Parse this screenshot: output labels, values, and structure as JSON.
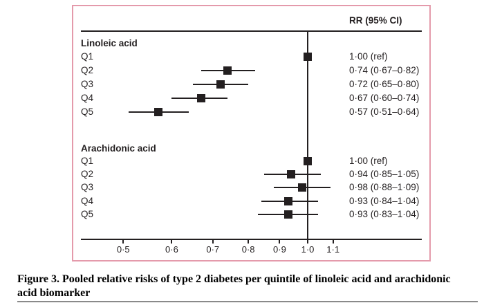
{
  "figure": {
    "column_header": "RR (95% CI)",
    "caption": "Figure 3. Pooled relative risks of type 2 diabetes per quintile of linoleic acid and arachidonic acid biomarker",
    "border_color": "#e49aab",
    "marker_color": "#231f20"
  },
  "chart_data": {
    "type": "forest-plot",
    "x_scale": "log",
    "x_ticks": [
      0.5,
      0.6,
      0.7,
      0.8,
      0.9,
      1.0,
      1.1
    ],
    "x_tick_labels": [
      "0·5",
      "0·6",
      "0·7",
      "0·8",
      "0·9",
      "1·0",
      "1·1"
    ],
    "xlim": [
      0.43,
      1.18
    ],
    "reference_line": 1.0,
    "value_column_header": "RR (95% CI)",
    "groups": [
      {
        "label": "Linoleic acid",
        "rows": [
          {
            "label": "Q1",
            "rr": 1.0,
            "ci_low": null,
            "ci_high": null,
            "text": "1·00 (ref)"
          },
          {
            "label": "Q2",
            "rr": 0.74,
            "ci_low": 0.67,
            "ci_high": 0.82,
            "text": "0·74 (0·67–0·82)"
          },
          {
            "label": "Q3",
            "rr": 0.72,
            "ci_low": 0.65,
            "ci_high": 0.8,
            "text": "0·72 (0·65–0·80)"
          },
          {
            "label": "Q4",
            "rr": 0.67,
            "ci_low": 0.6,
            "ci_high": 0.74,
            "text": "0·67 (0·60–0·74)"
          },
          {
            "label": "Q5",
            "rr": 0.57,
            "ci_low": 0.51,
            "ci_high": 0.64,
            "text": "0·57 (0·51–0·64)"
          }
        ]
      },
      {
        "label": "Arachidonic acid",
        "rows": [
          {
            "label": "Q1",
            "rr": 1.0,
            "ci_low": null,
            "ci_high": null,
            "text": "1·00 (ref)"
          },
          {
            "label": "Q2",
            "rr": 0.94,
            "ci_low": 0.85,
            "ci_high": 1.05,
            "text": "0·94 (0·85–1·05)"
          },
          {
            "label": "Q3",
            "rr": 0.98,
            "ci_low": 0.88,
            "ci_high": 1.09,
            "text": "0·98 (0·88–1·09)"
          },
          {
            "label": "Q4",
            "rr": 0.93,
            "ci_low": 0.84,
            "ci_high": 1.04,
            "text": "0·93 (0·84–1·04)"
          },
          {
            "label": "Q5",
            "rr": 0.93,
            "ci_low": 0.83,
            "ci_high": 1.04,
            "text": "0·93 (0·83–1·04)"
          }
        ]
      }
    ]
  }
}
